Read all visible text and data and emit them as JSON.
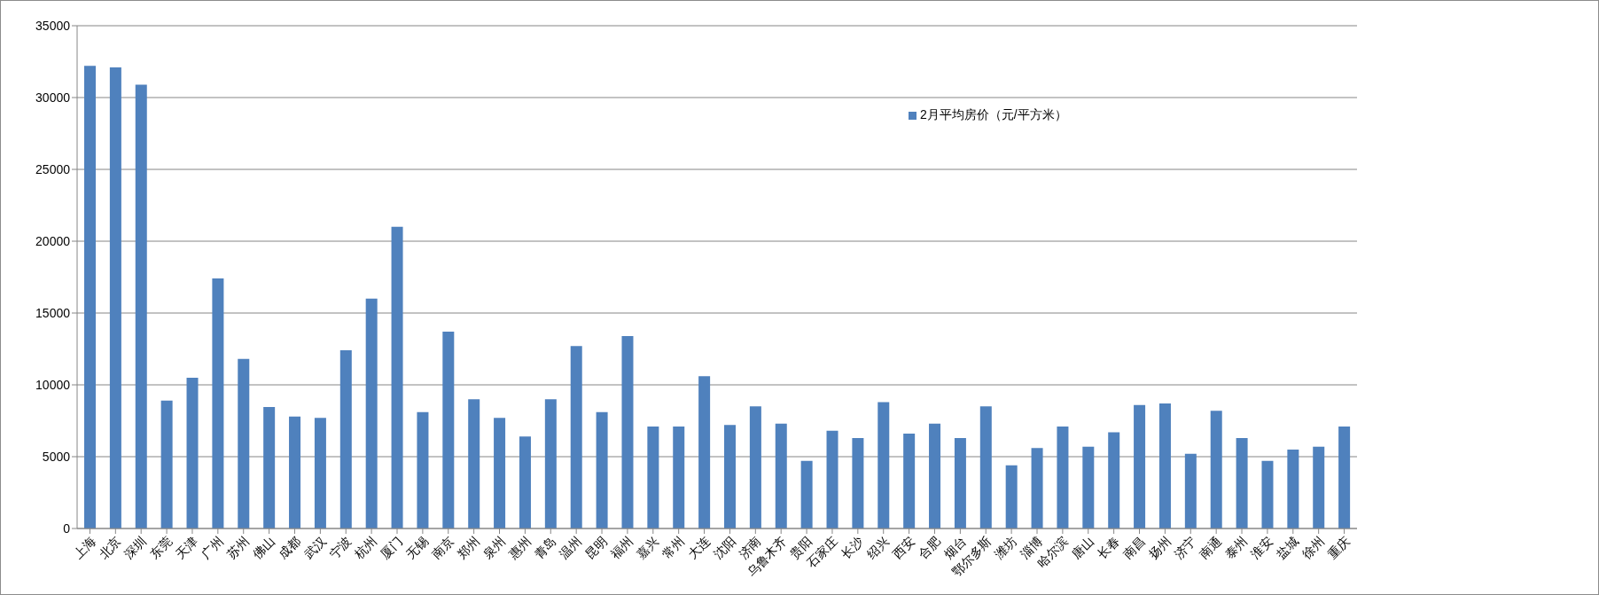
{
  "chart_data": {
    "type": "bar",
    "categories": [
      "上海",
      "北京",
      "深圳",
      "东莞",
      "天津",
      "广州",
      "苏州",
      "佛山",
      "成都",
      "武汉",
      "宁波",
      "杭州",
      "厦门",
      "无锡",
      "南京",
      "郑州",
      "泉州",
      "惠州",
      "青岛",
      "温州",
      "昆明",
      "福州",
      "嘉兴",
      "常州",
      "大连",
      "沈阳",
      "济南",
      "乌鲁木齐",
      "贵阳",
      "石家庄",
      "长沙",
      "绍兴",
      "西安",
      "合肥",
      "烟台",
      "鄂尔多斯",
      "潍坊",
      "淄博",
      "哈尔滨",
      "唐山",
      "长春",
      "南昌",
      "扬州",
      "济宁",
      "南通",
      "泰州",
      "淮安",
      "盐城",
      "徐州",
      "重庆"
    ],
    "series": [
      {
        "name": "2月平均房价（元/平方米）",
        "color": "#4f81bd",
        "values": [
          32200,
          32100,
          30900,
          8900,
          10500,
          17400,
          11800,
          8450,
          7800,
          7700,
          12400,
          16000,
          21000,
          8100,
          13700,
          9000,
          7700,
          6400,
          9000,
          12700,
          8100,
          13400,
          7100,
          7100,
          10600,
          7200,
          8500,
          7300,
          4700,
          6800,
          6300,
          8800,
          6600,
          7300,
          6300,
          8500,
          4400,
          5600,
          7100,
          5700,
          6700,
          8600,
          8700,
          5200,
          8200,
          6300,
          4700,
          5500,
          5700,
          7100
        ]
      }
    ],
    "ylim": [
      0,
      35000
    ],
    "yticks": [
      0,
      5000,
      10000,
      15000,
      20000,
      25000,
      30000,
      35000
    ],
    "grid": "y",
    "legend": "top right"
  }
}
